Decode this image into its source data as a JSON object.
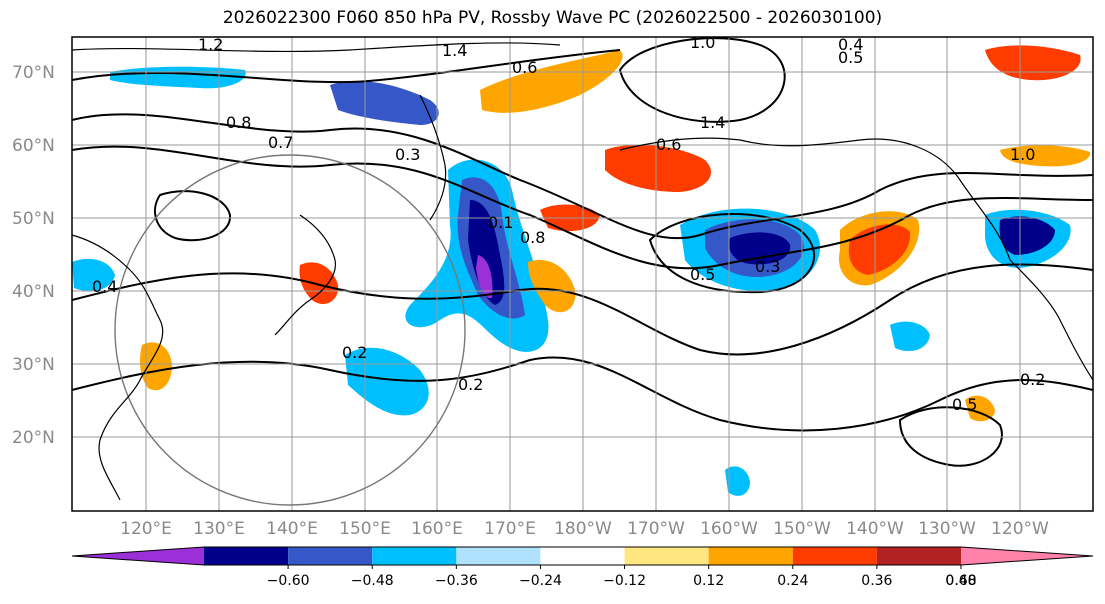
{
  "title": "2026022300 F060 850 hPa PV, Rossby Wave PC (2026022500 - 2026030100)",
  "latitudes": [
    "70°N",
    "60°N",
    "50°N",
    "40°N",
    "30°N",
    "20°N"
  ],
  "longitudes": [
    "120°E",
    "130°E",
    "140°E",
    "150°E",
    "160°E",
    "170°E",
    "180°W",
    "170°W",
    "160°W",
    "150°W",
    "140°W",
    "130°W",
    "120°W"
  ],
  "contour_labels": [
    "1.2",
    "1.4",
    "1.0",
    "0.6",
    "0.5",
    "0.4",
    "0.8",
    "0.7",
    "0.3",
    "0.2",
    "0.1",
    "1.4",
    "0.6",
    "0.8",
    "1.0",
    "0.5",
    "0.3",
    "0.4",
    "0.2",
    "0.5",
    "0.2"
  ],
  "colorbar": {
    "ticks": [
      "−0.60",
      "−0.48",
      "−0.36",
      "−0.24",
      "−0.12",
      "0.12",
      "0.24",
      "0.36",
      "0.48",
      "0.60"
    ],
    "colors": [
      "#9b30d9",
      "#00008b",
      "#3557c8",
      "#00bfff",
      "#b0e2ff",
      "#ffffff",
      "#ffe680",
      "#ffa500",
      "#ff3c00",
      "#b22222",
      "#ff82ab"
    ]
  },
  "colors": {
    "strong_negative": "#00008b",
    "moderate_negative": "#3557c8",
    "weak_negative": "#00bfff",
    "positive_orange": "#ffa500",
    "positive_red": "#ff3c00",
    "contour": "#000000"
  }
}
